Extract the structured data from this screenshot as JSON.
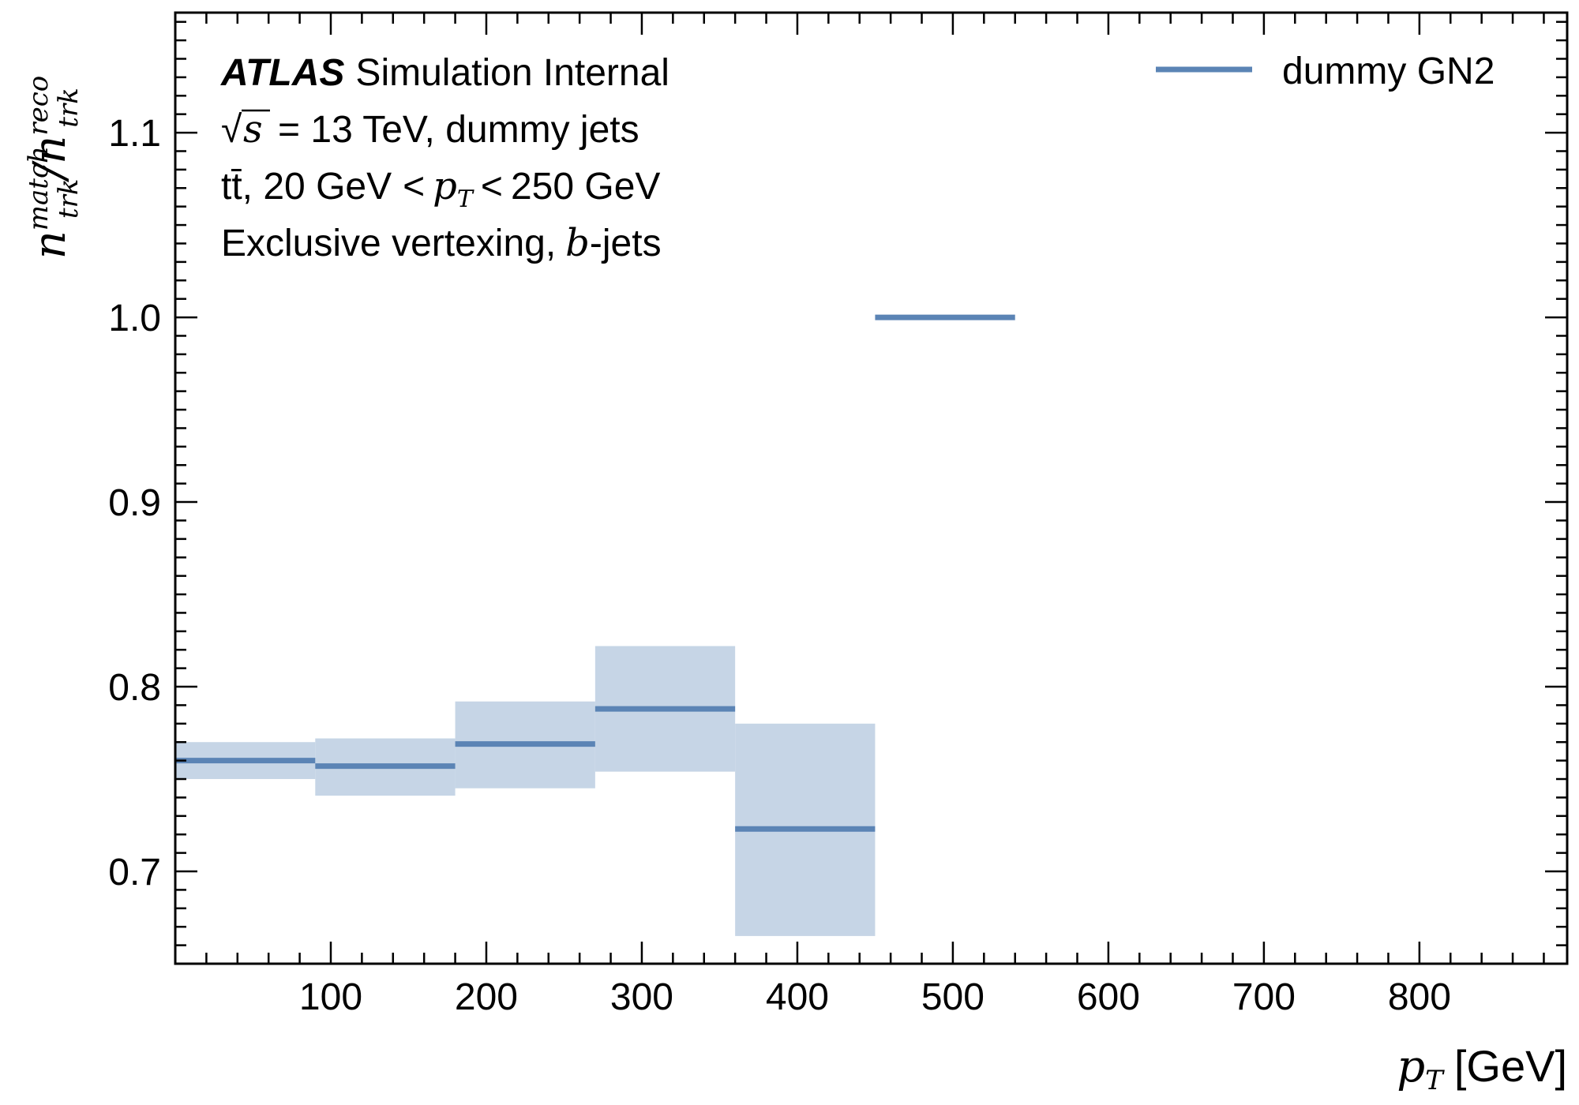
{
  "chart_data": {
    "type": "step",
    "xlabel": "[GeV]",
    "xlabel_var": "p",
    "xlabel_sub": "T",
    "ylabel": {
      "var": "n",
      "num_sup": "match",
      "num_sub": "trk",
      "den_sup": "reco",
      "den_sub": "trk"
    },
    "xlim": [
      0,
      895
    ],
    "ylim": [
      0.65,
      1.165
    ],
    "xticks": [
      100,
      200,
      300,
      400,
      500,
      600,
      700,
      800
    ],
    "xtick_labels": [
      "100",
      "200",
      "300",
      "400",
      "500",
      "600",
      "700",
      "800"
    ],
    "yticks": [
      0.7,
      0.8,
      0.9,
      1.0,
      1.1
    ],
    "ytick_labels": [
      "0.7",
      "0.8",
      "0.9",
      "1.0",
      "1.1"
    ],
    "grid": false,
    "legend_position": "top-right",
    "colors": {
      "line": "#5b84b5",
      "band": "#c6d5e6",
      "axis": "#000000"
    },
    "annotation": {
      "line1_bold": "ATLAS",
      "line1_rest": "Simulation Internal",
      "line2": "= 13 TeV, dummy jets",
      "line2_sqrt_arg": "s",
      "line3_prefix": "tt̄, 20 GeV",
      "line3_var": "p",
      "line3_sub": "T",
      "line3_suffix": "250 GeV",
      "line4_prefix": "Exclusive vertexing,",
      "line4_var": "b",
      "line4_suffix": "-jets"
    },
    "series": [
      {
        "name": "dummy GN2",
        "bins": [
          {
            "x0": 0,
            "x1": 90,
            "y": 0.76,
            "lo": 0.75,
            "hi": 0.77
          },
          {
            "x0": 90,
            "x1": 180,
            "y": 0.757,
            "lo": 0.741,
            "hi": 0.772
          },
          {
            "x0": 180,
            "x1": 270,
            "y": 0.769,
            "lo": 0.745,
            "hi": 0.792
          },
          {
            "x0": 270,
            "x1": 360,
            "y": 0.788,
            "lo": 0.754,
            "hi": 0.822
          },
          {
            "x0": 360,
            "x1": 450,
            "y": 0.723,
            "lo": 0.665,
            "hi": 0.78
          },
          {
            "x0": 450,
            "x1": 540,
            "y": 1.0,
            "lo": 1.0,
            "hi": 1.0
          }
        ]
      }
    ]
  }
}
